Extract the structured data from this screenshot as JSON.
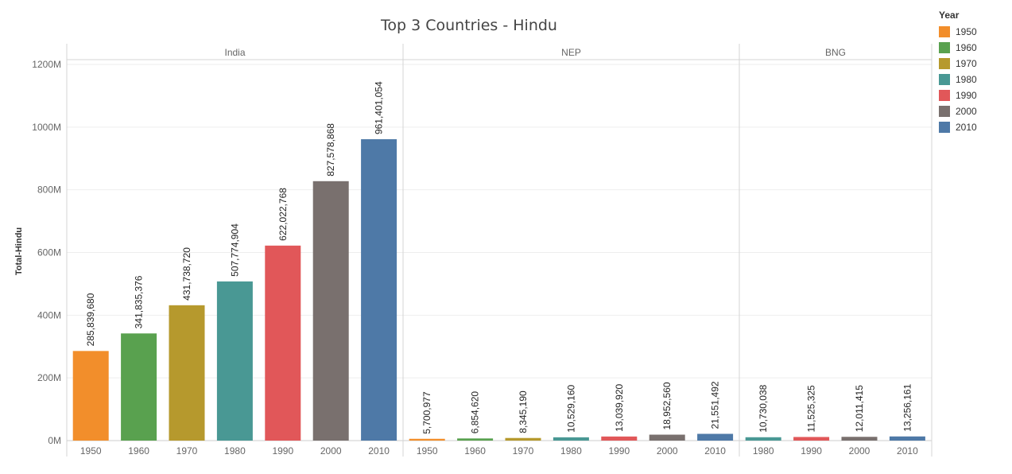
{
  "chart_data": {
    "type": "bar",
    "title": "Top 3 Countries - Hindu",
    "ylabel": "Total-Hindu",
    "ylim": [
      0,
      1200000000
    ],
    "y_ticks": [
      {
        "value": 0,
        "label": "0M"
      },
      {
        "value": 200000000,
        "label": "200M"
      },
      {
        "value": 400000000,
        "label": "400M"
      },
      {
        "value": 600000000,
        "label": "600M"
      },
      {
        "value": 800000000,
        "label": "800M"
      },
      {
        "value": 1000000000,
        "label": "1000M"
      },
      {
        "value": 1200000000,
        "label": "1200M"
      }
    ],
    "grid": true,
    "legend": {
      "title": "Year",
      "position": "right",
      "items": [
        {
          "label": "1950",
          "color": "#f28e2b"
        },
        {
          "label": "1960",
          "color": "#59a14f"
        },
        {
          "label": "1970",
          "color": "#b6992d"
        },
        {
          "label": "1980",
          "color": "#499894"
        },
        {
          "label": "1990",
          "color": "#e15759"
        },
        {
          "label": "2000",
          "color": "#79706e"
        },
        {
          "label": "2010",
          "color": "#4e79a7"
        }
      ]
    },
    "panels": [
      {
        "name": "India",
        "bars": [
          {
            "year": "1950",
            "value": 285839680,
            "label": "285,839,680"
          },
          {
            "year": "1960",
            "value": 341835376,
            "label": "341,835,376"
          },
          {
            "year": "1970",
            "value": 431738720,
            "label": "431,738,720"
          },
          {
            "year": "1980",
            "value": 507774904,
            "label": "507,774,904"
          },
          {
            "year": "1990",
            "value": 622022768,
            "label": "622,022,768"
          },
          {
            "year": "2000",
            "value": 827578868,
            "label": "827,578,868"
          },
          {
            "year": "2010",
            "value": 961401054,
            "label": "961,401,054"
          }
        ]
      },
      {
        "name": "NEP",
        "bars": [
          {
            "year": "1950",
            "value": 5700977,
            "label": "5,700,977"
          },
          {
            "year": "1960",
            "value": 6854620,
            "label": "6,854,620"
          },
          {
            "year": "1970",
            "value": 8345190,
            "label": "8,345,190"
          },
          {
            "year": "1980",
            "value": 10529160,
            "label": "10,529,160"
          },
          {
            "year": "1990",
            "value": 13039920,
            "label": "13,039,920"
          },
          {
            "year": "2000",
            "value": 18952560,
            "label": "18,952,560"
          },
          {
            "year": "2010",
            "value": 21551492,
            "label": "21,551,492"
          }
        ]
      },
      {
        "name": "BNG",
        "bars": [
          {
            "year": "1980",
            "value": 10730038,
            "label": "10,730,038"
          },
          {
            "year": "1990",
            "value": 11525325,
            "label": "11,525,325"
          },
          {
            "year": "2000",
            "value": 12011415,
            "label": "12,011,415"
          },
          {
            "year": "2010",
            "value": 13256161,
            "label": "13,256,161"
          }
        ]
      }
    ]
  }
}
